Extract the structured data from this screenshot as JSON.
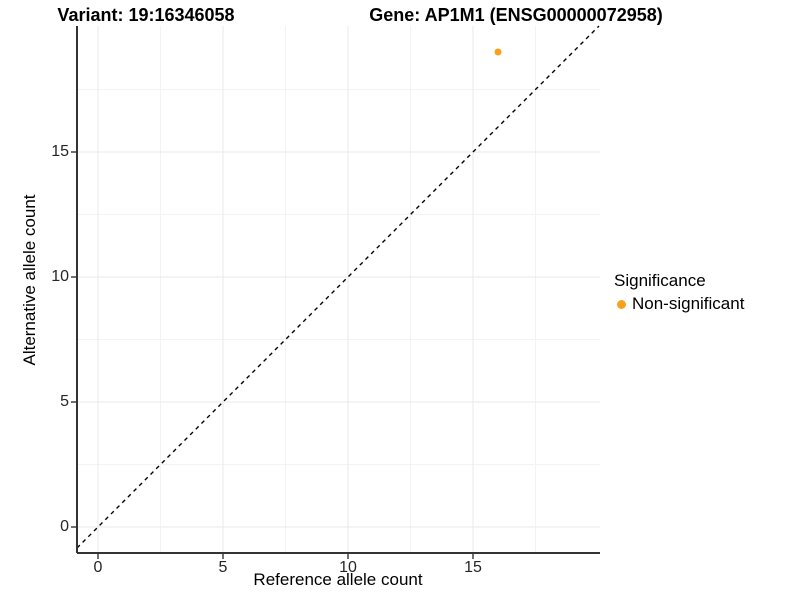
{
  "titles": {
    "left": "Variant: 19:16346058",
    "right": "Gene: AP1M1 (ENSG00000072958)"
  },
  "axes": {
    "x": {
      "label": "Reference allele count",
      "ticks": [
        0,
        5,
        10,
        15
      ]
    },
    "y": {
      "label": "Alternative allele count",
      "ticks": [
        0,
        5,
        10,
        15
      ]
    }
  },
  "legend": {
    "title": "Significance",
    "items": [
      {
        "label": "Non-significant",
        "color": "#F9A11B"
      }
    ]
  },
  "chart_data": {
    "type": "scatter",
    "title": "Variant: 19:16346058 | Gene: AP1M1 (ENSG00000072958)",
    "xlabel": "Reference allele count",
    "ylabel": "Alternative allele count",
    "points": [
      {
        "x": 16,
        "y": 19,
        "series": "Non-significant",
        "color": "#F9A11B"
      }
    ],
    "reference_line": {
      "type": "identity y=x",
      "style": "dashed",
      "color": "#000000"
    },
    "xlim": [
      -0.84,
      20.08
    ],
    "ylim": [
      -1.04,
      20.04
    ],
    "x_ticks": [
      0,
      5,
      10,
      15
    ],
    "y_ticks": [
      0,
      5,
      10,
      15
    ],
    "x_minor_ticks": [
      2.5,
      7.5,
      12.5,
      17.5
    ],
    "y_minor_ticks": [
      2.5,
      7.5,
      12.5,
      17.5
    ],
    "grid": "major+minor",
    "legend_position": "right",
    "colors": {
      "point": "#F9A11B",
      "grid_major": "#E8E8E8",
      "grid_minor": "#F3F3F3",
      "axis_line": "#333333",
      "tick_label": "#262626"
    }
  }
}
